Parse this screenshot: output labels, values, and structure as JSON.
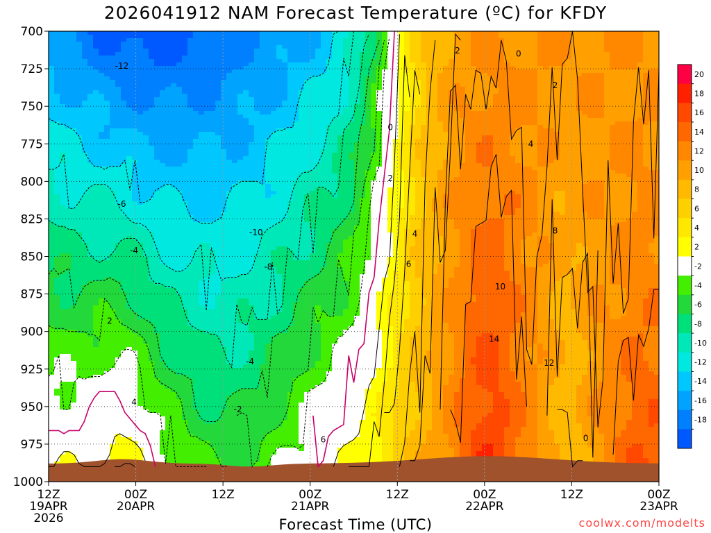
{
  "title": "2026041912 NAM Forecast Temperature (ºC) for KFDY",
  "xlabel": "Forecast Time (UTC)",
  "credit": "coolwx.com/modelts",
  "chart_data": {
    "type": "heatmap",
    "title": "2026041912 NAM Forecast Temperature (ºC) for KFDY",
    "xlabel": "Forecast Time (UTC)",
    "ylabel": "",
    "y_axis": {
      "ticks": [
        700,
        725,
        750,
        775,
        800,
        825,
        850,
        875,
        900,
        925,
        950,
        975,
        1000
      ],
      "range": [
        700,
        1000
      ]
    },
    "x_axis": {
      "ticks": [
        {
          "line1": "12Z",
          "line2": "19APR",
          "line3": "2026"
        },
        {
          "line1": "00Z",
          "line2": "20APR",
          "line3": ""
        },
        {
          "line1": "12Z",
          "line2": "",
          "line3": ""
        },
        {
          "line1": "00Z",
          "line2": "21APR",
          "line3": ""
        },
        {
          "line1": "12Z",
          "line2": "",
          "line3": ""
        },
        {
          "line1": "00Z",
          "line2": "22APR",
          "line3": ""
        },
        {
          "line1": "12Z",
          "line2": "",
          "line3": ""
        },
        {
          "line1": "00Z",
          "line2": "23APR",
          "line3": ""
        }
      ]
    },
    "colorbar": {
      "levels": [
        20,
        18,
        16,
        14,
        12,
        10,
        8,
        6,
        4,
        2,
        -2,
        -4,
        -6,
        -8,
        -10,
        -12,
        -14,
        -16,
        -18
      ],
      "colors": [
        "#ff0044",
        "#ff2000",
        "#ff4800",
        "#ff6800",
        "#ff8800",
        "#ffa000",
        "#ffba00",
        "#ffd000",
        "#ffe800",
        "#ffff00",
        "#ffffff",
        "#44ee00",
        "#22d83a",
        "#00e07a",
        "#00e8b8",
        "#00e8e0",
        "#00c8ff",
        "#00a4ff",
        "#0080ff",
        "#0058ff"
      ]
    },
    "contour_labels": [
      {
        "text": "-12",
        "t": 0.12,
        "p": 723
      },
      {
        "text": "-6",
        "t": 0.12,
        "p": 815
      },
      {
        "text": "-4",
        "t": 0.14,
        "p": 846
      },
      {
        "text": "2",
        "t": 0.1,
        "p": 893
      },
      {
        "text": "4",
        "t": 0.14,
        "p": 947
      },
      {
        "text": "-10",
        "t": 0.34,
        "p": 834
      },
      {
        "text": "-8",
        "t": 0.36,
        "p": 857
      },
      {
        "text": "-4",
        "t": 0.33,
        "p": 920
      },
      {
        "text": "-2",
        "t": 0.31,
        "p": 952
      },
      {
        "text": "0",
        "t": 0.56,
        "p": 764
      },
      {
        "text": "2",
        "t": 0.56,
        "p": 798
      },
      {
        "text": "4",
        "t": 0.6,
        "p": 835
      },
      {
        "text": "6",
        "t": 0.59,
        "p": 855
      },
      {
        "text": "6",
        "t": 0.45,
        "p": 972
      },
      {
        "text": "2",
        "t": 0.67,
        "p": 713
      },
      {
        "text": "0",
        "t": 0.77,
        "p": 715
      },
      {
        "text": "2",
        "t": 0.83,
        "p": 736
      },
      {
        "text": "4",
        "t": 0.79,
        "p": 775
      },
      {
        "text": "8",
        "t": 0.83,
        "p": 833
      },
      {
        "text": "10",
        "t": 0.74,
        "p": 870
      },
      {
        "text": "14",
        "t": 0.73,
        "p": 905
      },
      {
        "text": "12",
        "t": 0.82,
        "p": 921
      },
      {
        "text": "0",
        "t": 0.88,
        "p": 971
      }
    ]
  }
}
